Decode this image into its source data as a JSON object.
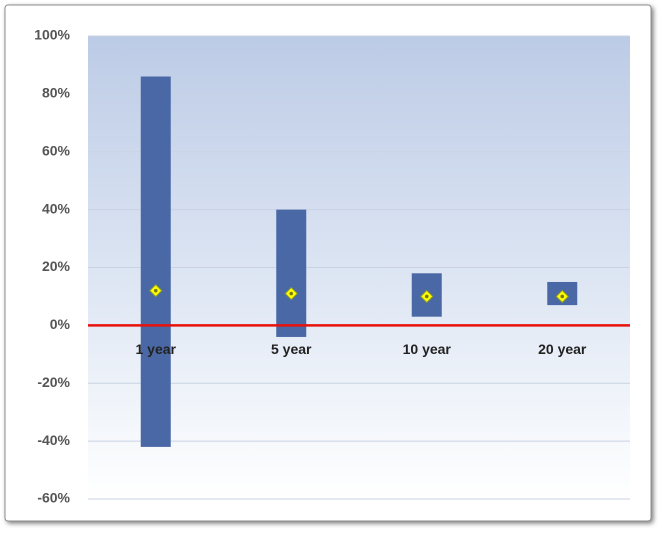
{
  "chart_data": {
    "type": "range",
    "categories": [
      "1 year",
      "5 year",
      "10 year",
      "20 year"
    ],
    "low": [
      -42,
      -4,
      3,
      7
    ],
    "high": [
      86,
      40,
      18,
      15
    ],
    "average": [
      12,
      11,
      10,
      10
    ],
    "color": "#4a68a6",
    "marker_color": "#ffff00",
    "zero_line_color": "#e8120c",
    "ylim": [
      -60,
      100
    ],
    "yticks": [
      {
        "value": -60,
        "label": "-60%"
      },
      {
        "value": -40,
        "label": "-40%"
      },
      {
        "value": -20,
        "label": "-20%"
      },
      {
        "value": 0,
        "label": "0%"
      },
      {
        "value": 20,
        "label": "20%"
      },
      {
        "value": 40,
        "label": "40%"
      },
      {
        "value": 60,
        "label": "60%"
      },
      {
        "value": 80,
        "label": "80%"
      },
      {
        "value": 100,
        "label": "100%"
      }
    ],
    "grid": true
  }
}
